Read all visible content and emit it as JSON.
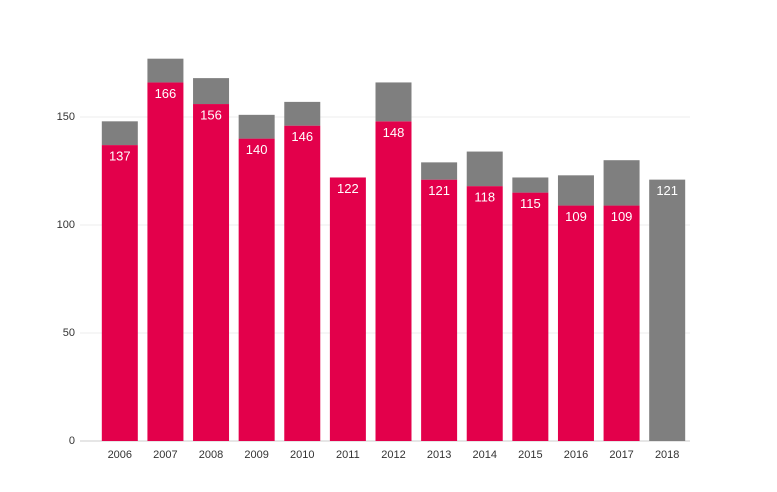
{
  "chart_data": {
    "type": "stacked-bar",
    "categories": [
      "2006",
      "2007",
      "2008",
      "2009",
      "2010",
      "2011",
      "2012",
      "2013",
      "2014",
      "2015",
      "2016",
      "2017",
      "2018"
    ],
    "series": [
      {
        "color": "#e3004b",
        "values": [
          137,
          166,
          156,
          140,
          146,
          122,
          148,
          121,
          118,
          115,
          109,
          109,
          null
        ]
      },
      {
        "color": "#7f7f7f",
        "values": [
          11,
          11,
          12,
          11,
          11,
          0,
          18,
          8,
          16,
          7,
          14,
          21,
          121
        ]
      }
    ],
    "ylim": [
      0,
      185
    ],
    "yticks": [
      0,
      50,
      100,
      150
    ],
    "grid": true
  }
}
